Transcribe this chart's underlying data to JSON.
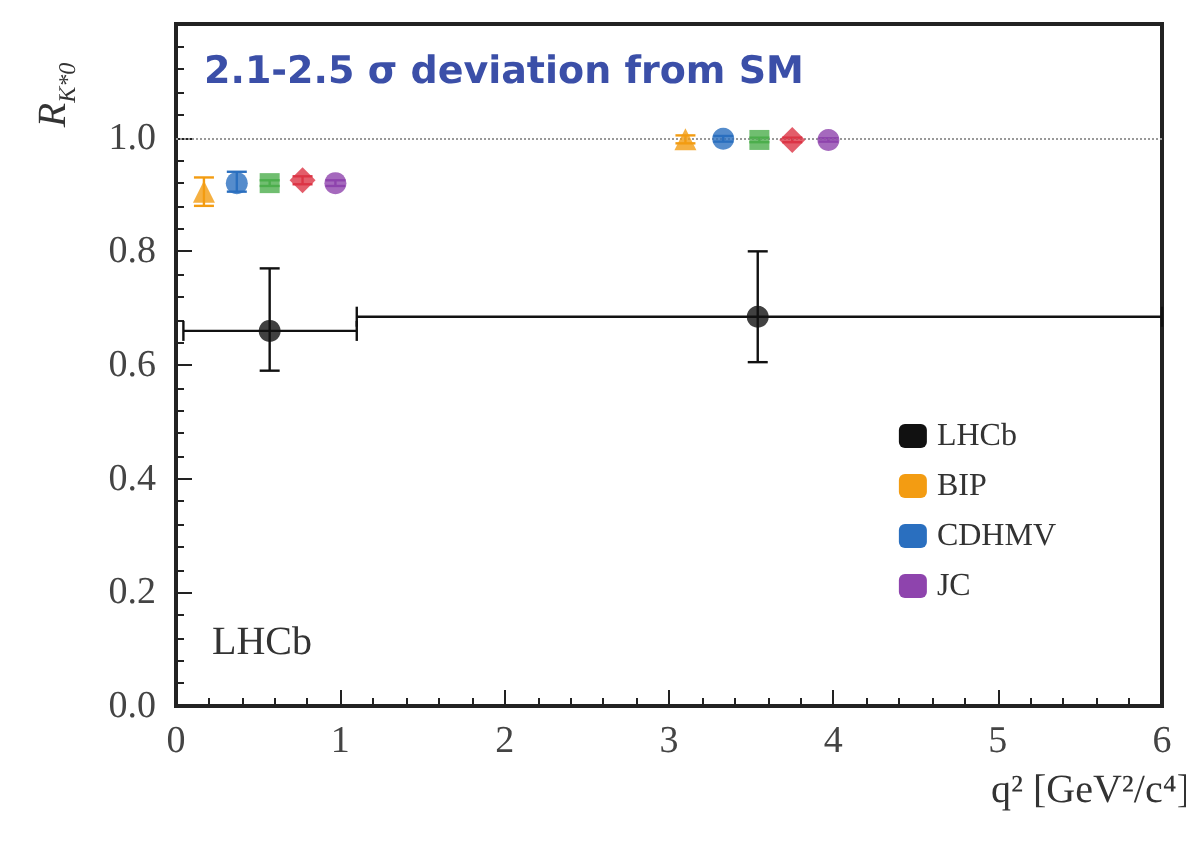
{
  "chart_data": {
    "type": "scatter",
    "xlabel": "q² [GeV²/c⁴]",
    "ylabel": "R$_{K*0}$",
    "annotations": [
      "2.1-2.5 σ deviation from SM",
      "LHCb"
    ],
    "xlim": [
      0,
      6
    ],
    "xticks": [
      0,
      1,
      2,
      3,
      4,
      5,
      6
    ],
    "ylim": [
      0,
      1.2
    ],
    "yticks": [
      {
        "value": 0,
        "label": "0.0"
      },
      0.2,
      0.4,
      0.6,
      0.8,
      {
        "value": 1.0,
        "label": "1.0"
      },
      {
        "value": 1.2,
        "label": null
      }
    ],
    "ref_lines": [
      {
        "axis": "y",
        "value": 1.0,
        "label": null,
        "color": "#999999",
        "line_style": "dotted"
      }
    ],
    "grid": false,
    "legend": "bottom right",
    "series": [
      {
        "name": "LHCb",
        "color": "#111111",
        "marker": "circle",
        "x": [
          0.57,
          3.54
        ],
        "values": [
          0.66,
          0.685
        ],
        "errors": [
          [
            0.59,
            0.77
          ],
          [
            0.605,
            0.8
          ]
        ],
        "xerrors": [
          [
            0.045,
            1.1
          ],
          [
            1.1,
            6.0
          ]
        ]
      },
      {
        "name": "BIP",
        "color": "#f39c12",
        "marker": "triangle",
        "x": [
          0.17,
          3.1
        ],
        "values": [
          0.905,
          0.997
        ],
        "errors": [
          [
            0.88,
            0.93
          ],
          [
            0.99,
            1.004
          ]
        ]
      },
      {
        "name": "CDHMV",
        "color": "#2a6fbf",
        "x": [
          0.37,
          3.33
        ],
        "values": [
          0.92,
          0.998
        ],
        "errors": [
          [
            0.905,
            0.94
          ],
          [
            0.993,
            1.003
          ]
        ]
      },
      {
        "color": "#4cae4c",
        "marker": "square",
        "x": [
          0.57,
          3.55
        ],
        "values": [
          0.92,
          0.996
        ],
        "errors": [
          [
            0.915,
            0.925
          ],
          [
            0.992,
            1.0
          ]
        ]
      },
      {
        "color": "#dc3545",
        "marker": "diamond",
        "x": [
          0.77,
          3.75
        ],
        "values": [
          0.925,
          0.996
        ],
        "errors": [
          [
            0.918,
            0.932
          ],
          [
            0.992,
            1.0
          ]
        ]
      },
      {
        "name": "JC",
        "color": "#8e44ad",
        "x": [
          0.97,
          3.97
        ],
        "values": [
          0.92,
          0.996
        ],
        "errors": [
          [
            0.915,
            0.925
          ],
          [
            0.993,
            0.999
          ]
        ]
      }
    ]
  }
}
